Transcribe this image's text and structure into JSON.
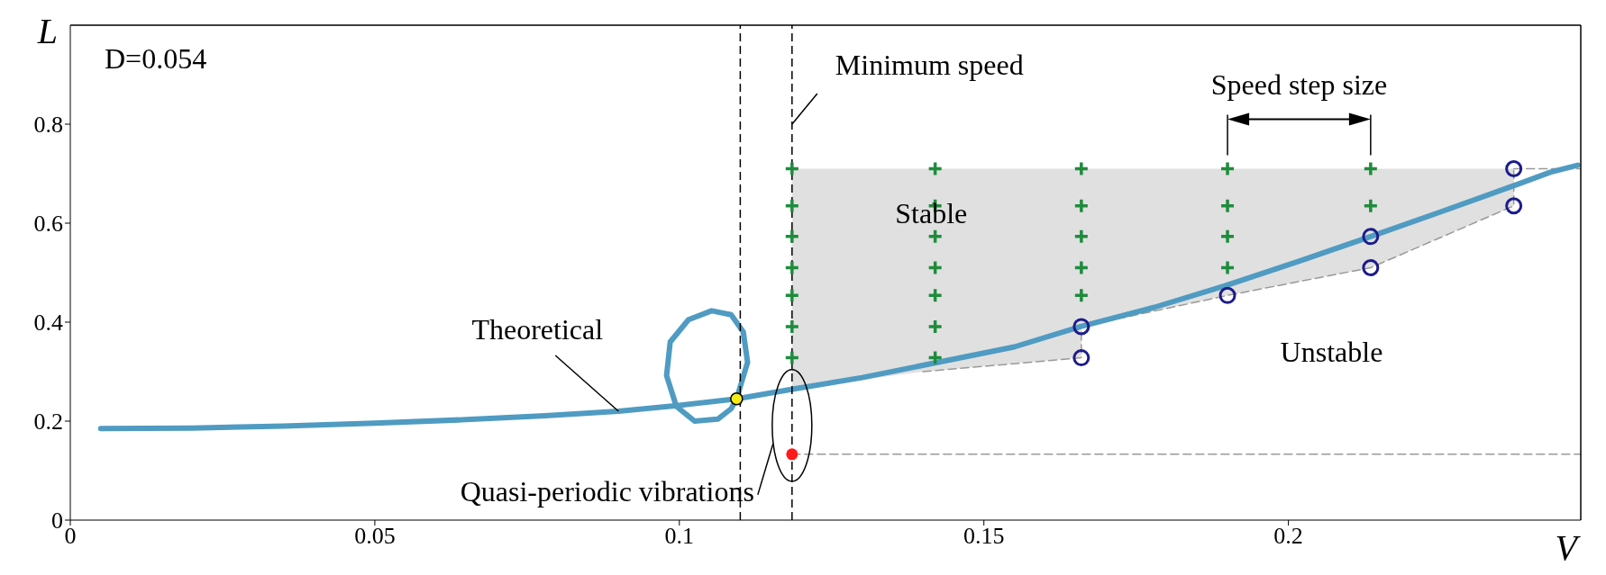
{
  "chart_data": {
    "type": "line",
    "xlabel": "V",
    "ylabel": "L",
    "xlim": [
      0,
      0.248
    ],
    "xticks": [
      0,
      0.05,
      0.1,
      0.15,
      0.2
    ],
    "ylim": [
      0,
      1
    ],
    "yticks": [
      0,
      0.2,
      0.4,
      0.6,
      0.8
    ],
    "series": [
      {
        "type": "line",
        "color": "#999999",
        "line_style": "dashed",
        "marker": "none",
        "x": [
          0.1185,
          0.14,
          0.166,
          0.166,
          0.19,
          0.2135,
          0.237,
          0.237
        ],
        "values": [
          null,
          0.3,
          0.328,
          0.391,
          0.454,
          0.51,
          0.635,
          0.71
        ],
        "lower": [
          0.265,
          0.3,
          0.328,
          0.391,
          0.454,
          0.51,
          0.635,
          0.71
        ],
        "upper": [
          0.71,
          0.71,
          0.71,
          0.71,
          0.71,
          0.71,
          0.71,
          0.71
        ]
      },
      {
        "type": "line",
        "color": "#999999",
        "line_style": "dashed",
        "marker": "none",
        "x": [
          0.237,
          0.248
        ],
        "values": [
          0.71,
          0.71
        ]
      },
      {
        "type": "line",
        "color": "#999999",
        "line_style": "dashed",
        "marker": "none",
        "x": [
          0.1185,
          0.248
        ],
        "values": [
          0.133,
          0.133
        ]
      },
      {
        "name": "Theoretical",
        "color": "#4f9bc2",
        "line_style": "solid",
        "marker": "none",
        "x": [
          0.005,
          0.02,
          0.035,
          0.05,
          0.065,
          0.078,
          0.09,
          0.1,
          0.1094,
          0.1112,
          0.1105,
          0.1085,
          0.1053,
          0.1015,
          0.0985,
          0.0979,
          0.0995,
          0.1025,
          0.1063,
          0.1085,
          0.1094,
          0.1188,
          0.13,
          0.1409,
          0.155,
          0.1659,
          0.178,
          0.1897,
          0.2017,
          0.2135,
          0.2255,
          0.2373,
          0.243,
          0.2475
        ],
        "values": [
          0.185,
          0.186,
          0.19,
          0.196,
          0.203,
          0.211,
          0.22,
          0.232,
          0.245,
          0.319,
          0.38,
          0.415,
          0.423,
          0.405,
          0.36,
          0.292,
          0.23,
          0.2,
          0.204,
          0.225,
          0.245,
          0.265,
          0.288,
          0.315,
          0.35,
          0.391,
          0.43,
          0.474,
          0.523,
          0.573,
          0.625,
          0.677,
          0.703,
          0.717
        ]
      },
      {
        "type": "scatter",
        "color": "#1e8c3c",
        "marker": "cross",
        "x": [
          0.1185,
          0.1185,
          0.1185,
          0.1185,
          0.1185,
          0.1185,
          0.1185,
          0.142,
          0.142,
          0.142,
          0.142,
          0.142,
          0.142,
          0.142,
          0.166,
          0.166,
          0.166,
          0.166,
          0.166,
          0.19,
          0.19,
          0.19,
          0.19,
          0.2135,
          0.2135
        ],
        "values": [
          0.71,
          0.635,
          0.573,
          0.51,
          0.454,
          0.391,
          0.328,
          0.71,
          0.635,
          0.573,
          0.51,
          0.454,
          0.391,
          0.328,
          0.71,
          0.635,
          0.573,
          0.51,
          0.454,
          0.71,
          0.635,
          0.573,
          0.51,
          0.71,
          0.635
        ]
      },
      {
        "type": "scatter",
        "color": "#1c1c8a",
        "marker": "circle",
        "x": [
          0.166,
          0.166,
          0.19,
          0.2135,
          0.2135,
          0.237,
          0.237
        ],
        "values": [
          0.391,
          0.328,
          0.454,
          0.573,
          0.51,
          0.71,
          0.635
        ]
      },
      {
        "type": "scatter",
        "color": "#f4ea1a",
        "marker": "circle",
        "x": [
          0.1094
        ],
        "values": [
          0.245
        ]
      },
      {
        "type": "scatter",
        "name": "Quasi-periodic vibrations",
        "color": "#ff1a1a",
        "marker": "circle",
        "x": [
          0.1185
        ],
        "values": [
          0.133
        ]
      }
    ],
    "ref_lines": [
      {
        "axis": "x",
        "value": 0.11,
        "color": "#000000",
        "line_style": "dashed"
      },
      {
        "axis": "x",
        "value": 0.1185,
        "label": "Minimum speed",
        "color": "#000000",
        "line_style": "dashed"
      }
    ],
    "annotations": [
      "D=0.054",
      "Speed step size",
      "Stable",
      "Unstable"
    ]
  }
}
